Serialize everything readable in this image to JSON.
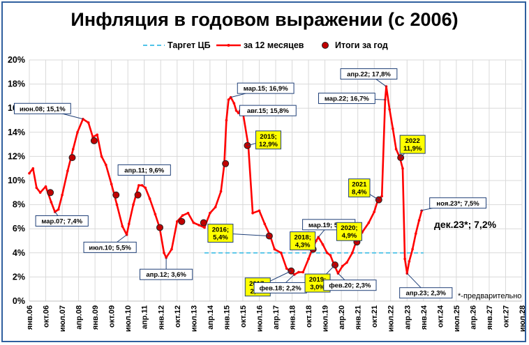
{
  "chart_data": {
    "type": "line",
    "title": "Инфляция в годовом выражении (с 2006)",
    "legend": [
      "Таргет ЦБ",
      "за 12 месяцев",
      "Итоги за год"
    ],
    "legend_position": "top",
    "ylim": [
      0,
      20
    ],
    "yticks": [
      "0%",
      "2%",
      "4%",
      "6%",
      "8%",
      "10%",
      "12%",
      "14%",
      "16%",
      "18%",
      "20%"
    ],
    "x_range": [
      2006.0,
      2028.5
    ],
    "xticks": [
      "янв.06",
      "окт.06",
      "июл.07",
      "апр.08",
      "янв.09",
      "окт.09",
      "июл.10",
      "апр.11",
      "янв.12",
      "окт.12",
      "июл.13",
      "апр.14",
      "янв.15",
      "окт.15",
      "июл.16",
      "апр.17",
      "янв.18",
      "окт.18",
      "июл.19",
      "апр.20",
      "янв.21",
      "окт.21",
      "июл.22",
      "апр.23",
      "янв.24",
      "окт.24",
      "июл.25",
      "апр.26",
      "янв.27",
      "окт.27",
      "июл.28"
    ],
    "grid": true,
    "target": {
      "y": 4.0,
      "x_start": 2014.0,
      "x_end": 2024.0
    },
    "monthly": {
      "x": [
        2006.0,
        2006.17,
        2006.33,
        2006.5,
        2006.75,
        2007.0,
        2007.17,
        2007.33,
        2007.5,
        2007.75,
        2008.0,
        2008.2,
        2008.45,
        2008.7,
        2008.9,
        2009.1,
        2009.3,
        2009.5,
        2009.75,
        2010.0,
        2010.25,
        2010.45,
        2010.55,
        2010.75,
        2011.0,
        2011.15,
        2011.3,
        2011.5,
        2011.75,
        2011.95,
        2012.15,
        2012.25,
        2012.5,
        2012.75,
        2013.0,
        2013.25,
        2013.5,
        2013.75,
        2014.0,
        2014.25,
        2014.5,
        2014.75,
        2014.9,
        2015.0,
        2015.1,
        2015.2,
        2015.35,
        2015.45,
        2015.55,
        2015.62,
        2015.75,
        2016.0,
        2016.2,
        2016.5,
        2016.75,
        2017.0,
        2017.2,
        2017.5,
        2017.75,
        2017.92,
        2018.1,
        2018.3,
        2018.5,
        2018.75,
        2018.92,
        2019.1,
        2019.2,
        2019.4,
        2019.6,
        2019.75,
        2019.92,
        2020.1,
        2020.3,
        2020.5,
        2020.75,
        2020.92,
        2021.2,
        2021.5,
        2021.75,
        2021.92,
        2022.1,
        2022.25,
        2022.3,
        2022.45,
        2022.6,
        2022.75,
        2022.92,
        2023.05,
        2023.15,
        2023.25,
        2023.35,
        2023.5,
        2023.65,
        2023.8,
        2023.92
      ],
      "y": [
        10.6,
        11.0,
        9.4,
        9.0,
        9.5,
        8.2,
        7.4,
        7.6,
        8.8,
        10.8,
        12.6,
        14.0,
        15.1,
        14.8,
        13.6,
        13.8,
        12.0,
        11.3,
        9.7,
        8.0,
        6.2,
        5.5,
        6.4,
        8.0,
        9.6,
        9.6,
        9.4,
        8.5,
        7.2,
        6.1,
        4.0,
        3.6,
        4.3,
        6.6,
        7.1,
        7.3,
        6.5,
        6.3,
        6.1,
        7.3,
        7.8,
        9.1,
        11.3,
        15.0,
        16.7,
        16.9,
        16.4,
        15.8,
        15.6,
        15.8,
        15.7,
        12.9,
        7.3,
        7.5,
        6.4,
        5.4,
        4.3,
        4.0,
        2.7,
        2.5,
        2.2,
        2.4,
        2.4,
        3.5,
        4.3,
        5.0,
        5.3,
        4.7,
        4.0,
        3.8,
        3.0,
        2.3,
        2.9,
        3.2,
        4.0,
        4.9,
        5.7,
        6.5,
        7.4,
        8.4,
        8.7,
        16.7,
        17.8,
        15.9,
        14.3,
        12.6,
        11.9,
        11.0,
        3.5,
        2.3,
        3.3,
        4.3,
        5.6,
        6.7,
        7.5
      ]
    },
    "year_end": {
      "x": [
        2006.96,
        2007.96,
        2008.96,
        2009.96,
        2010.96,
        2011.96,
        2012.96,
        2013.96,
        2014.96,
        2015.96,
        2016.96,
        2017.96,
        2018.96,
        2019.96,
        2020.96,
        2021.96,
        2022.96
      ],
      "y": [
        9.0,
        11.9,
        13.3,
        8.8,
        8.8,
        6.1,
        6.6,
        6.5,
        11.4,
        12.9,
        5.4,
        2.5,
        4.3,
        3.0,
        4.9,
        8.4,
        11.9
      ]
    },
    "annotations": [
      {
        "text": "июн.08; 15,1%",
        "x": 2008.45,
        "y": 15.1,
        "highlight": false
      },
      {
        "text": "мар.07; 7,4%",
        "x": 2007.17,
        "y": 7.4,
        "highlight": false
      },
      {
        "text": "июл.10; 5,5%",
        "x": 2010.45,
        "y": 5.5,
        "highlight": false
      },
      {
        "text": "апр.11; 9,6%",
        "x": 2011.25,
        "y": 9.6,
        "highlight": false
      },
      {
        "text": "апр.12; 3,6%",
        "x": 2012.25,
        "y": 3.6,
        "highlight": false
      },
      {
        "text": "мар.15; 16,9%",
        "x": 2015.2,
        "y": 16.9,
        "highlight": false
      },
      {
        "text": "авг.15; 15,8%",
        "x": 2015.62,
        "y": 15.8,
        "highlight": false
      },
      {
        "text": "2015;\n12,9%",
        "x": 2015.96,
        "y": 12.9,
        "highlight": true
      },
      {
        "text": "2016;\n5,4%",
        "x": 2016.96,
        "y": 5.4,
        "highlight": true
      },
      {
        "text": "2017;\n2,5%",
        "x": 2017.96,
        "y": 2.5,
        "highlight": true
      },
      {
        "text": "фев.18; 2,2%",
        "x": 2018.1,
        "y": 2.2,
        "highlight": false
      },
      {
        "text": "2018;\n4,3%",
        "x": 2018.96,
        "y": 4.3,
        "highlight": true
      },
      {
        "text": "мар.19; 5,3%",
        "x": 2019.2,
        "y": 5.3,
        "highlight": false
      },
      {
        "text": "2019;\n3,0%",
        "x": 2019.96,
        "y": 3.0,
        "highlight": true
      },
      {
        "text": "2020;\n4,9%",
        "x": 2020.96,
        "y": 4.9,
        "highlight": true
      },
      {
        "text": "фев.20; 2,3%",
        "x": 2020.1,
        "y": 2.3,
        "highlight": false
      },
      {
        "text": "2021\n8,4%",
        "x": 2021.96,
        "y": 8.4,
        "highlight": true
      },
      {
        "text": "апр.22; 17,8%",
        "x": 2022.3,
        "y": 17.8,
        "highlight": false
      },
      {
        "text": "мар.22; 16,7%",
        "x": 2022.25,
        "y": 16.7,
        "highlight": false
      },
      {
        "text": "2022\n11,9%",
        "x": 2022.96,
        "y": 11.9,
        "highlight": true
      },
      {
        "text": "апр.23; 2,3%",
        "x": 2023.25,
        "y": 2.3,
        "highlight": false
      },
      {
        "text": "ноя.23*; 7,5%",
        "x": 2023.85,
        "y": 7.5,
        "highlight": false
      }
    ],
    "latest": "дек.23*; 7,2%",
    "footnote": "*-предварительно"
  },
  "colors": {
    "line": "#ff0000",
    "marker": "#c00000",
    "target": "#4fc3e8",
    "frame": "#2f5f9e",
    "box_border": "#1f3f77",
    "highlight": "#ffff00",
    "grid": "#d9d9d9"
  }
}
